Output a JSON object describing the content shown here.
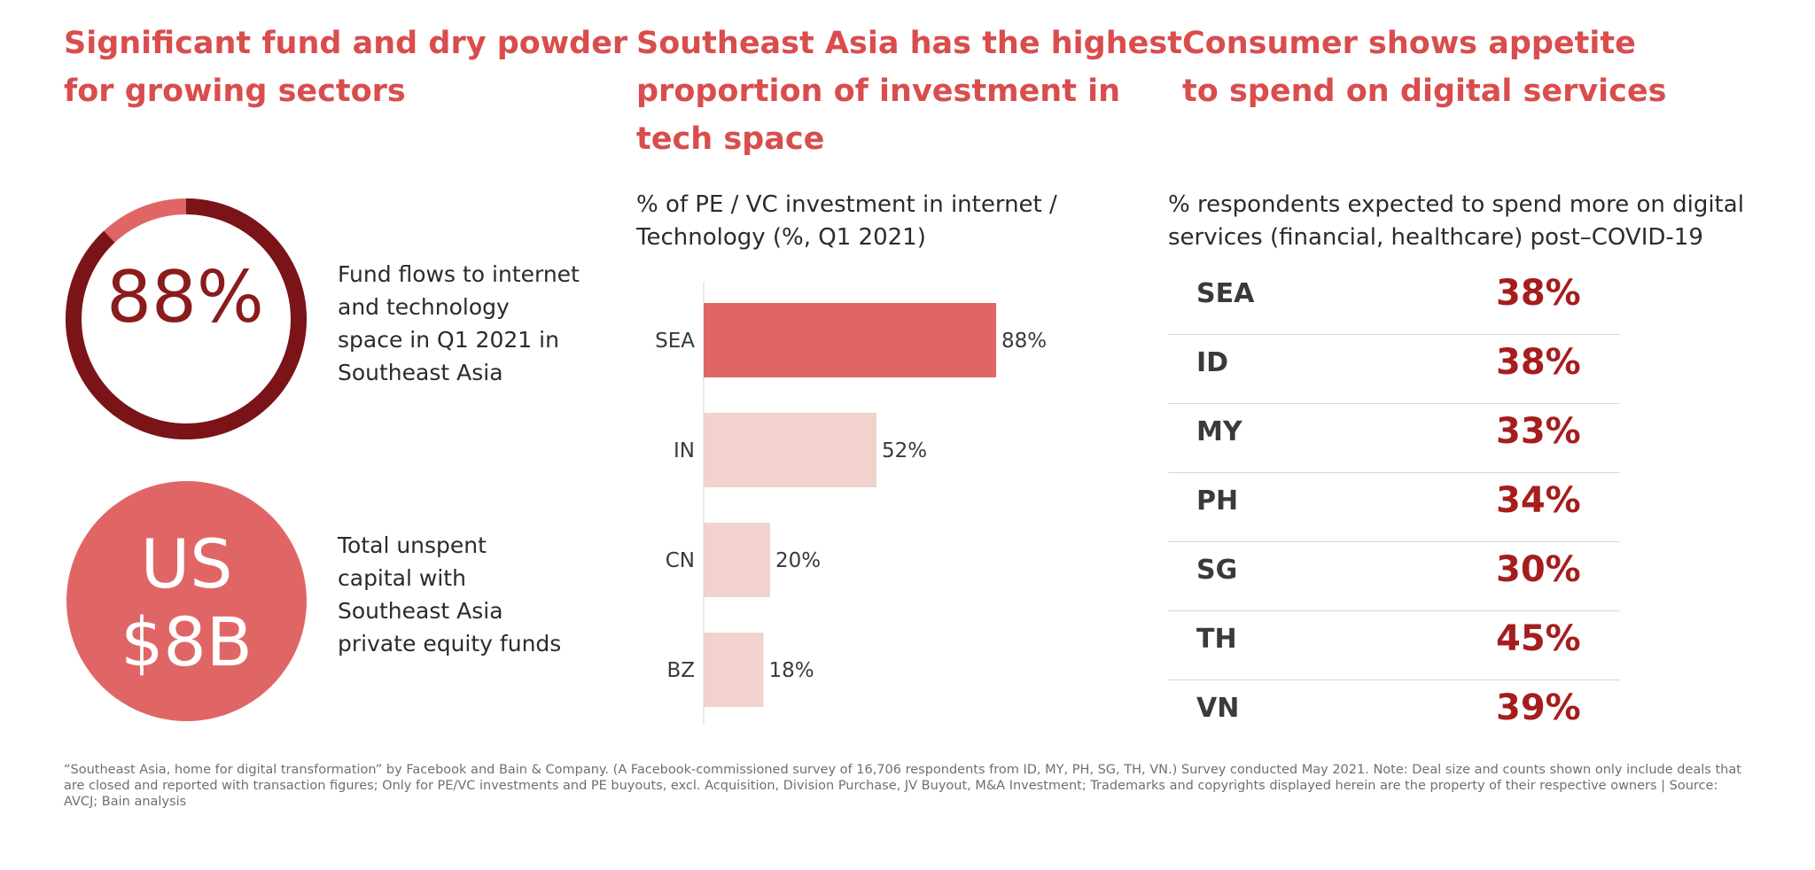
{
  "colors": {
    "heading": "#d94d4d",
    "dark_red": "#8a1c1c",
    "accent": "#e06666",
    "bar_highlight": "#e06666",
    "bar_light": "#f2d2cc"
  },
  "col1": {
    "heading_lines": [
      "Significant fund and dry powder",
      "for growing sectors"
    ],
    "donut": {
      "value": "88%",
      "fraction": 0.88
    },
    "donut_text_lines": [
      "Fund flows to internet",
      "and technology",
      "space in Q1 2021 in",
      "Southeast Asia"
    ],
    "circle": {
      "line1": "US",
      "line2": "$8B"
    },
    "circle_text_lines": [
      "Total unspent",
      "capital with",
      "Southeast Asia",
      "private equity funds"
    ]
  },
  "col2": {
    "heading_lines": [
      "Southeast Asia has the highest",
      "proportion of investment in",
      "tech space"
    ],
    "subtitle_lines": [
      "% of PE / VC investment in internet /",
      "Technology (%, Q1 2021)"
    ]
  },
  "chart_data": {
    "type": "bar",
    "orientation": "horizontal",
    "categories": [
      "SEA",
      "IN",
      "CN",
      "BZ"
    ],
    "values": [
      88,
      52,
      20,
      18
    ],
    "value_labels": [
      "88%",
      "52%",
      "20%",
      "18%"
    ],
    "highlight": "SEA",
    "xlim": [
      0,
      100
    ]
  },
  "col3": {
    "heading_lines": [
      "Consumer shows appetite",
      "to spend on digital services"
    ],
    "subtitle_lines": [
      "% respondents expected to spend more on digital",
      "services (financial, healthcare) post–COVID-19"
    ],
    "rows": [
      {
        "country": "SEA",
        "value": "38%"
      },
      {
        "country": "ID",
        "value": "38%"
      },
      {
        "country": "MY",
        "value": "33%"
      },
      {
        "country": "PH",
        "value": "34%"
      },
      {
        "country": "SG",
        "value": "30%"
      },
      {
        "country": "TH",
        "value": "45%"
      },
      {
        "country": "VN",
        "value": "39%"
      }
    ]
  },
  "footnote_lines": [
    "“Southeast Asia, home for digital transformation” by Facebook and Bain & Company. (A Facebook-commissioned survey of 16,706 respondents from ID, MY, PH, SG, TH, VN.) Survey conducted May 2021. Note: Deal size and counts shown only include deals that",
    "are closed and reported with transaction figures; Only for PE/VC investments and PE buyouts, excl. Acquisition, Division Purchase, JV Buyout, M&A Investment; Trademarks and copyrights displayed herein are the property of their respective owners | Source:",
    "AVCJ; Bain analysis"
  ]
}
